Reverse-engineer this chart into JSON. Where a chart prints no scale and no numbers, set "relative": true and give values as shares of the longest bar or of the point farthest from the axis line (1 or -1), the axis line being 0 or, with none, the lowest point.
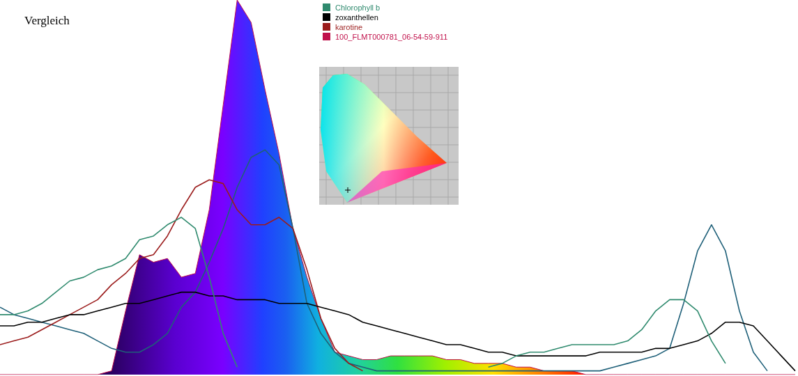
{
  "chart_data": {
    "type": "line",
    "title": "Vergleich",
    "relative": true,
    "legend": "top",
    "grid": false,
    "marker": "none",
    "line_style": "solid",
    "categories": [
      null,
      null,
      null,
      null,
      null,
      null,
      null,
      null,
      null,
      null,
      null,
      null,
      null,
      null,
      null,
      null,
      null,
      null,
      null,
      null,
      null,
      null,
      null,
      null,
      null,
      null,
      null,
      null,
      null,
      null,
      null,
      null,
      null,
      null,
      null,
      null,
      null,
      null,
      null,
      null,
      null,
      null,
      null,
      null,
      null,
      null,
      null,
      null,
      null,
      null,
      null,
      null,
      null,
      null,
      null,
      null,
      null,
      null
    ],
    "series": [
      {
        "name": "Chlorophyll b",
        "color": "#2f8a6e",
        "values": [
          0.16,
          0.16,
          0.17,
          0.19,
          0.22,
          0.25,
          0.26,
          0.28,
          0.29,
          0.31,
          0.36,
          0.37,
          0.4,
          0.42,
          0.39,
          0.26,
          0.11,
          0.02,
          null,
          null,
          null,
          null,
          null,
          null,
          null,
          null,
          null,
          null,
          null,
          null,
          null,
          null,
          null,
          null,
          null,
          0.02,
          0.03,
          0.05,
          0.06,
          0.06,
          0.07,
          0.08,
          0.08,
          0.08,
          0.08,
          0.09,
          0.12,
          0.17,
          0.2,
          0.2,
          0.17,
          0.09,
          0.03,
          null,
          null,
          null,
          null,
          null
        ]
      },
      {
        "name": "zoxanthellen",
        "color": "#000000",
        "values": [
          0.13,
          0.13,
          0.14,
          0.14,
          0.15,
          0.16,
          0.16,
          0.17,
          0.18,
          0.19,
          0.19,
          0.2,
          0.21,
          0.22,
          0.22,
          0.21,
          0.21,
          0.2,
          0.2,
          0.2,
          0.19,
          0.19,
          0.19,
          0.18,
          0.17,
          0.16,
          0.14,
          0.13,
          0.12,
          0.11,
          0.1,
          0.09,
          0.08,
          0.08,
          0.07,
          0.06,
          0.06,
          0.05,
          0.05,
          0.05,
          0.05,
          0.05,
          0.05,
          0.06,
          0.06,
          0.06,
          0.06,
          0.07,
          0.07,
          0.08,
          0.09,
          0.11,
          0.14,
          0.14,
          0.13,
          0.09,
          0.05,
          0.01
        ]
      },
      {
        "name": "karotine",
        "color": "#9b1c1c",
        "values": [
          0.08,
          0.09,
          0.1,
          0.12,
          0.14,
          0.16,
          0.18,
          0.2,
          0.24,
          0.27,
          0.31,
          0.32,
          0.37,
          0.44,
          0.5,
          0.52,
          0.51,
          0.44,
          0.4,
          0.4,
          0.42,
          0.39,
          0.28,
          0.15,
          0.07,
          0.03,
          0.01,
          null,
          null,
          null,
          null,
          null,
          null,
          null,
          null,
          null,
          null,
          null,
          null,
          null,
          null,
          null,
          null,
          null,
          null,
          null,
          null,
          null,
          null,
          null,
          null,
          null,
          null,
          null,
          null,
          null,
          null,
          null
        ]
      },
      {
        "name": "100_FLMT000781_06-54-59-911",
        "type": "area",
        "color": "#c0104a",
        "values": [
          0,
          0,
          0,
          0,
          0,
          0,
          0,
          0,
          0.01,
          0.17,
          0.32,
          0.3,
          0.31,
          0.26,
          0.27,
          0.44,
          0.72,
          1,
          0.94,
          0.76,
          0.59,
          0.39,
          0.26,
          0.15,
          0.06,
          0.05,
          0.04,
          0.04,
          0.05,
          0.05,
          0.05,
          0.05,
          0.04,
          0.04,
          0.03,
          0.03,
          0.03,
          0.02,
          0.02,
          0.01,
          0.01,
          0.01,
          0,
          0,
          0,
          0,
          0,
          0,
          0,
          0,
          0,
          0,
          0,
          0,
          0,
          0,
          0,
          0
        ]
      },
      {
        "color": "#1f6079",
        "values": [
          0.18,
          0.16,
          0.15,
          0.14,
          0.13,
          0.12,
          0.11,
          0.09,
          0.07,
          0.06,
          0.06,
          0.08,
          0.11,
          0.18,
          0.22,
          0.3,
          0.39,
          0.5,
          0.58,
          0.6,
          0.56,
          0.39,
          0.19,
          0.11,
          0.06,
          0.03,
          0.02,
          0.01,
          0.01,
          0.01,
          0.01,
          0.01,
          0.01,
          0.01,
          0.01,
          0.01,
          0.01,
          0.01,
          0.01,
          0.01,
          0.01,
          0.01,
          0.01,
          0.01,
          0.02,
          0.03,
          0.04,
          0.05,
          0.07,
          0.19,
          0.33,
          0.4,
          0.33,
          0.17,
          0.06,
          0.01,
          null,
          null
        ]
      }
    ]
  }
}
